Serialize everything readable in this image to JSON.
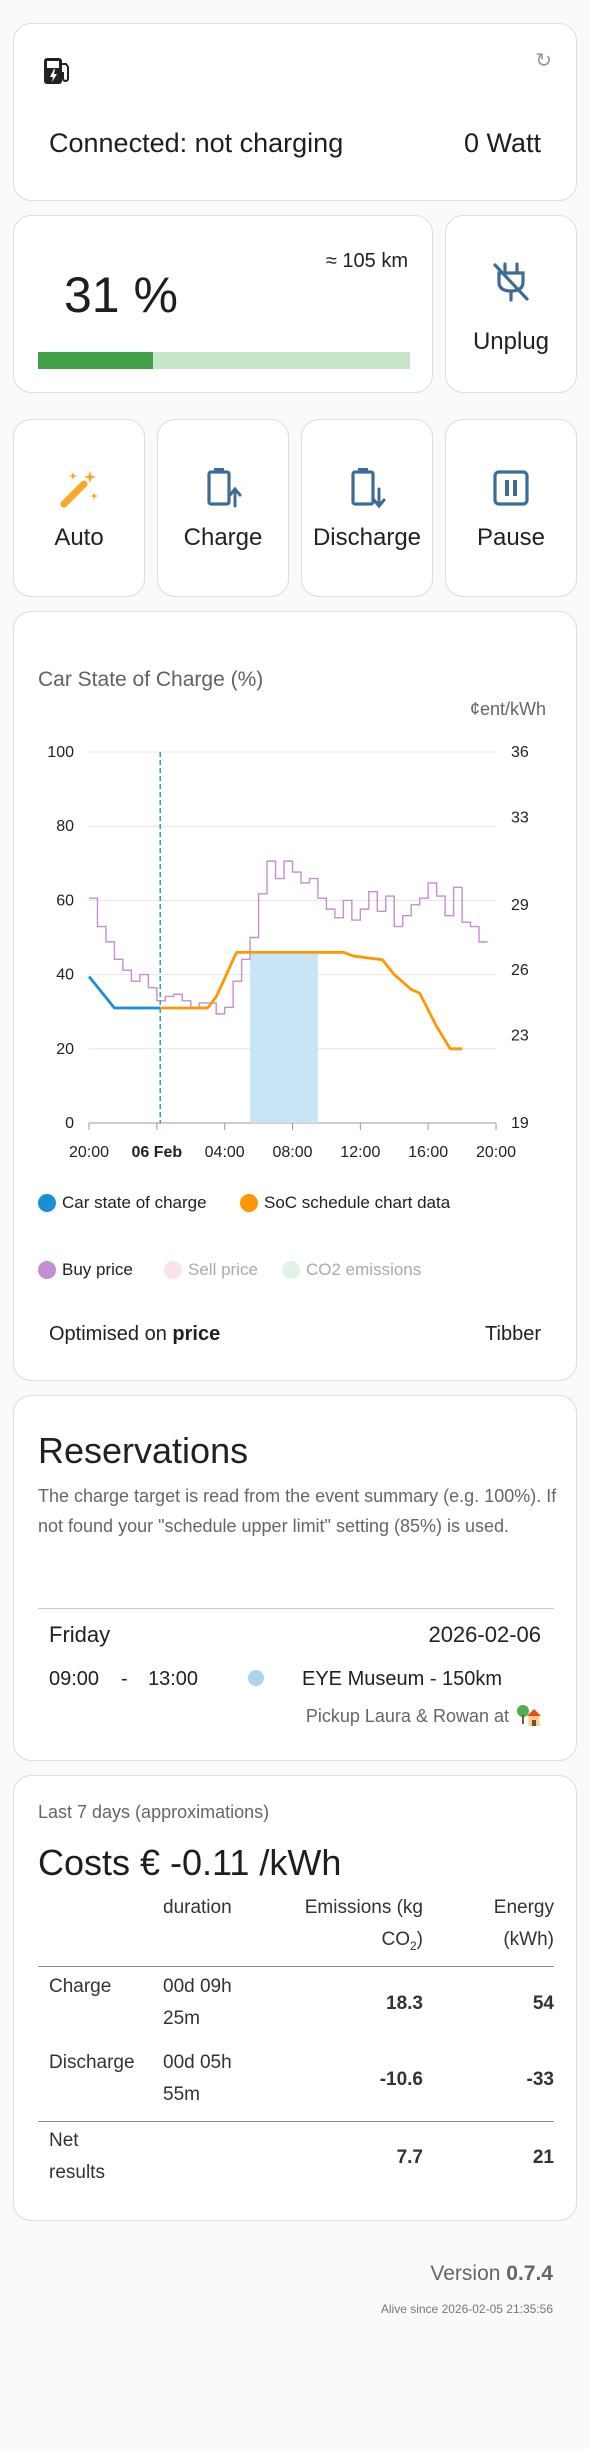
{
  "status": {
    "icon": "ev-charger-icon",
    "refresh_icon": "↻",
    "connection_text": "Connected: not charging",
    "power_text": "0 Watt"
  },
  "battery": {
    "soc_text": "31 %",
    "soc_fraction": 0.31,
    "range_text": "≈ 105 km",
    "bar_color": "#43a047",
    "bar_track_color": "#c8e6c9"
  },
  "unplug": {
    "label": "Unplug",
    "icon": "power-plug-off-icon"
  },
  "modes": [
    {
      "label": "Auto",
      "icon": "magic-wand-icon",
      "icon_color": "#f9a825"
    },
    {
      "label": "Charge",
      "icon": "battery-arrow-up-icon",
      "icon_color": "#3f6c94"
    },
    {
      "label": "Discharge",
      "icon": "battery-arrow-down-icon",
      "icon_color": "#3f6c94"
    },
    {
      "label": "Pause",
      "icon": "pause-box-icon",
      "icon_color": "#3f6c94"
    }
  ],
  "chart": {
    "title": "Car State of Charge (%)",
    "right_unit": "¢ent/kWh",
    "optimised_prefix": "Optimised on ",
    "optimised_value": "price",
    "provider": "Tibber",
    "legend": [
      {
        "label": "Car state of charge",
        "color": "#1b8fd6",
        "active": true
      },
      {
        "label": "SoC schedule chart data",
        "color": "#ff9800",
        "active": true
      },
      {
        "label": "Buy price",
        "color": "#c48fce",
        "active": true
      },
      {
        "label": "Sell price",
        "color": "#fbe3ea",
        "active": false
      },
      {
        "label": "CO2 emissions",
        "color": "#e3f2e6",
        "active": false
      }
    ]
  },
  "chart_data": {
    "type": "line",
    "title": "Car State of Charge (%)",
    "ylabel_right": "¢ent/kWh",
    "x_ticks": [
      "20:00",
      "06 Feb",
      "04:00",
      "08:00",
      "12:00",
      "16:00",
      "20:00"
    ],
    "x_hours": [
      0,
      4,
      8,
      12,
      16,
      20,
      24
    ],
    "x_range_hours": [
      0,
      24
    ],
    "now_hour": 4.2,
    "left_axis": {
      "min": 0,
      "max": 100,
      "ticks": [
        0,
        20,
        40,
        60,
        80,
        100
      ]
    },
    "right_axis": {
      "min": 19,
      "max": 36,
      "ticks": [
        19,
        23,
        26,
        29,
        33,
        36
      ]
    },
    "series": [
      {
        "name": "Car state of charge",
        "axis": "left",
        "color": "#1b8fd6",
        "points": [
          [
            0,
            39.5
          ],
          [
            1.5,
            31
          ],
          [
            4.2,
            31
          ]
        ]
      },
      {
        "name": "SoC schedule chart data",
        "axis": "left",
        "color": "#ff9800",
        "points": [
          [
            4.2,
            31
          ],
          [
            7,
            31
          ],
          [
            7.5,
            34
          ],
          [
            8.7,
            46
          ],
          [
            11,
            46
          ],
          [
            15,
            46
          ],
          [
            15.6,
            45
          ],
          [
            17.3,
            44
          ],
          [
            18,
            40
          ],
          [
            19,
            36
          ],
          [
            19.5,
            35
          ],
          [
            20.5,
            26
          ],
          [
            21.3,
            20
          ],
          [
            22,
            20
          ]
        ]
      },
      {
        "name": "Buy price",
        "axis": "right",
        "color": "#c48fce",
        "points": [
          [
            0,
            29.3
          ],
          [
            0.5,
            28.0
          ],
          [
            1.0,
            27.3
          ],
          [
            1.5,
            26.5
          ],
          [
            2.0,
            26.0
          ],
          [
            2.5,
            25.5
          ],
          [
            3.0,
            25.8
          ],
          [
            3.5,
            25.2
          ],
          [
            4.0,
            24.6
          ],
          [
            4.5,
            24.8
          ],
          [
            5.0,
            24.9
          ],
          [
            5.5,
            24.6
          ],
          [
            6.0,
            24.3
          ],
          [
            6.5,
            24.5
          ],
          [
            7.0,
            24.5
          ],
          [
            7.5,
            24.0
          ],
          [
            8.0,
            24.3
          ],
          [
            8.5,
            25.5
          ],
          [
            9.0,
            26.5
          ],
          [
            9.5,
            27.5
          ],
          [
            10.0,
            29.5
          ],
          [
            10.5,
            31.0
          ],
          [
            11.0,
            30.2
          ],
          [
            11.5,
            31.0
          ],
          [
            12.0,
            30.5
          ],
          [
            12.5,
            30.0
          ],
          [
            13.0,
            30.2
          ],
          [
            13.5,
            29.3
          ],
          [
            14.0,
            28.8
          ],
          [
            14.5,
            28.4
          ],
          [
            15.0,
            29.2
          ],
          [
            15.5,
            28.3
          ],
          [
            16.0,
            28.8
          ],
          [
            16.5,
            29.6
          ],
          [
            17.0,
            28.7
          ],
          [
            17.5,
            29.4
          ],
          [
            18.0,
            28.0
          ],
          [
            18.5,
            28.5
          ],
          [
            19.0,
            29.0
          ],
          [
            19.5,
            29.3
          ],
          [
            20.0,
            30.0
          ],
          [
            20.5,
            29.4
          ],
          [
            21.0,
            28.5
          ],
          [
            21.5,
            29.8
          ],
          [
            22.0,
            28.2
          ],
          [
            22.5,
            28.0
          ],
          [
            23.0,
            27.3
          ]
        ]
      }
    ],
    "highlight_band_hours": [
      9.5,
      13.5
    ]
  },
  "reservations": {
    "title": "Reservations",
    "description": "The charge target is read from the event summary (e.g. 100%). If not found your \"schedule upper limit\" setting (85%) is used.",
    "day": "Friday",
    "date": "2026-02-06",
    "start": "09:00",
    "separator": "-",
    "end": "13:00",
    "dot_color": "#a8d4ef",
    "event": "EYE Museum - 150km",
    "note": "Pickup Laura & Rowan at",
    "note_icon": "house-tree-icon"
  },
  "stats": {
    "period": "Last 7 days (approximations)",
    "costs_text": "Costs € -0.11 /kWh",
    "headers": {
      "duration": "duration",
      "emissions_line1": "Emissions (kg",
      "emissions_line2": "CO",
      "emissions_sub": "2",
      "emissions_close": ")",
      "energy_line1": "Energy",
      "energy_line2": "(kWh)"
    },
    "rows": [
      {
        "label": "Charge",
        "duration_line1": "00d 09h",
        "duration_line2": "25m",
        "emissions": "18.3",
        "energy": "54"
      },
      {
        "label": "Discharge",
        "duration_line1": "00d 05h",
        "duration_line2": "55m",
        "emissions": "-10.6",
        "energy": "-33"
      }
    ],
    "net": {
      "label_line1": "Net",
      "label_line2": "results",
      "emissions": "7.7",
      "energy": "21"
    }
  },
  "footer": {
    "version_prefix": "Version ",
    "version": "0.7.4",
    "alive": "Alive since 2026-02-05 21:35:56"
  }
}
